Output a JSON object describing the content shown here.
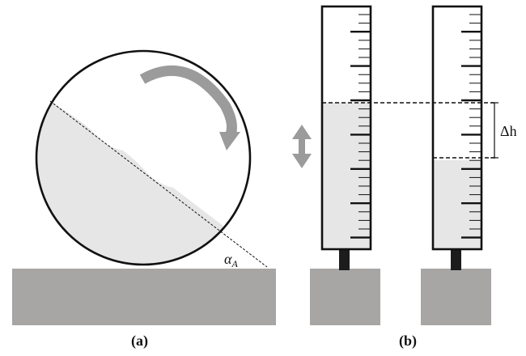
{
  "panel_a": {
    "caption": "(a)",
    "angle_label": "α",
    "angle_subscript": "A"
  },
  "panel_b": {
    "caption": "(b)",
    "delta_label": "Δh"
  },
  "colors": {
    "liquid": "#e6e6e6",
    "base": "#a8a5a5",
    "arrow": "#9b9b9b",
    "outline": "#111111",
    "stem": "#1c1c1c"
  }
}
